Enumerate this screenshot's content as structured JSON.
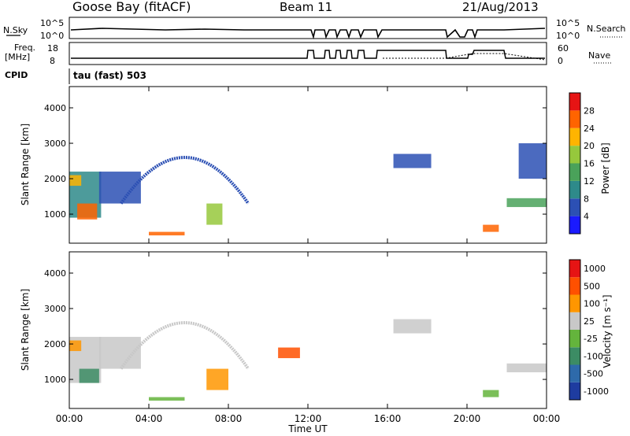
{
  "header": {
    "station": "Goose Bay (fitACF)",
    "beam": "Beam 11",
    "date": "21/Aug/2013"
  },
  "top_panels": {
    "nsky_label": "N.Sky",
    "nsky_ticks": [
      "10^5",
      "10^0"
    ],
    "nsearch_label": "N.Search",
    "nsearch_ticks": [
      "10^5",
      "10^0"
    ],
    "freq_label": [
      "Freq.",
      "[MHz]"
    ],
    "freq_ticks": [
      "18",
      "8"
    ],
    "nave_label": "Nave",
    "nave_ticks": [
      "60",
      "0"
    ],
    "cpid_label": "CPID",
    "cpid_text": "tau (fast) 503"
  },
  "chart_data": [
    {
      "type": "heatmap",
      "title": "",
      "ylabel": "Slant Range [km]",
      "xlabel": "",
      "yticks": [
        "1000",
        "2000",
        "3000",
        "4000"
      ],
      "ylim": [
        180,
        4600
      ],
      "xlim": [
        "00:00",
        "24:00"
      ],
      "colorbar": {
        "label": "Power [dB]",
        "ticks": [
          "4",
          "8",
          "12",
          "16",
          "20",
          "24",
          "28"
        ],
        "colors": [
          "#1a1aff",
          "#2c50b4",
          "#2e8a8a",
          "#4aa25a",
          "#96c83c",
          "#ffb400",
          "#ff6400",
          "#e61414"
        ]
      },
      "regions": [
        {
          "t0": 0.0,
          "t1": 1.6,
          "r0": 900,
          "r1": 2200,
          "color": "#2e8a8a"
        },
        {
          "t0": 0.4,
          "t1": 1.4,
          "r0": 850,
          "r1": 1300,
          "color": "#ff6400"
        },
        {
          "t0": 0.0,
          "t1": 0.6,
          "r0": 1800,
          "r1": 2100,
          "color": "#ffb400"
        },
        {
          "t0": 1.5,
          "t1": 3.6,
          "r0": 1300,
          "r1": 2200,
          "color": "#2c50b4"
        },
        {
          "t0": 4.0,
          "t1": 5.8,
          "r0": 400,
          "r1": 500,
          "color": "#ff6400"
        },
        {
          "t0": 6.9,
          "t1": 7.7,
          "r0": 700,
          "r1": 1300,
          "color": "#96c83c"
        },
        {
          "t0": 16.3,
          "t1": 18.2,
          "r0": 2300,
          "r1": 2700,
          "color": "#2c50b4"
        },
        {
          "t0": 20.8,
          "t1": 21.6,
          "r0": 500,
          "r1": 700,
          "color": "#ff6400"
        },
        {
          "t0": 22.0,
          "t1": 24.0,
          "r0": 1200,
          "r1": 1450,
          "color": "#4aa25a"
        },
        {
          "t0": 22.6,
          "t1": 24.0,
          "r0": 2000,
          "r1": 3000,
          "color": "#2c50b4"
        }
      ],
      "arc": {
        "t_start": 2.6,
        "t_peak": 5.8,
        "t_end": 9.0,
        "r_base": 1300,
        "r_peak": 2600,
        "color": "#2c50b4"
      }
    },
    {
      "type": "heatmap",
      "title": "",
      "ylabel": "Slant Range [km]",
      "xlabel": "Time UT",
      "xticks": [
        "00:00",
        "04:00",
        "08:00",
        "12:00",
        "16:00",
        "20:00",
        "00:00"
      ],
      "yticks": [
        "1000",
        "2000",
        "3000",
        "4000"
      ],
      "ylim": [
        180,
        4600
      ],
      "colorbar": {
        "label": "Velocity [m s⁻¹]",
        "ticks": [
          "1000",
          "500",
          "100",
          "25",
          "-25",
          "-100",
          "-500",
          "-1000"
        ],
        "colors": [
          "#1e3ca0",
          "#2e6aaa",
          "#3c8c64",
          "#64b43c",
          "#c8c8c8",
          "#ff9600",
          "#ff5000",
          "#e61414"
        ]
      },
      "regions": [
        {
          "t0": 0.0,
          "t1": 1.6,
          "r0": 900,
          "r1": 2200,
          "color": "#c8c8c8"
        },
        {
          "t0": 0.0,
          "t1": 0.6,
          "r0": 1800,
          "r1": 2100,
          "color": "#ff9600"
        },
        {
          "t0": 0.5,
          "t1": 1.5,
          "r0": 900,
          "r1": 1300,
          "color": "#3c8c64"
        },
        {
          "t0": 1.5,
          "t1": 3.6,
          "r0": 1300,
          "r1": 2200,
          "color": "#c8c8c8"
        },
        {
          "t0": 4.0,
          "t1": 5.8,
          "r0": 400,
          "r1": 500,
          "color": "#64b43c"
        },
        {
          "t0": 6.9,
          "t1": 8.0,
          "r0": 700,
          "r1": 1300,
          "color": "#ff9600"
        },
        {
          "t0": 10.5,
          "t1": 11.6,
          "r0": 1600,
          "r1": 1900,
          "color": "#ff5000"
        },
        {
          "t0": 16.3,
          "t1": 18.2,
          "r0": 2300,
          "r1": 2700,
          "color": "#c8c8c8"
        },
        {
          "t0": 20.8,
          "t1": 21.6,
          "r0": 500,
          "r1": 700,
          "color": "#64b43c"
        },
        {
          "t0": 22.0,
          "t1": 24.0,
          "r0": 1200,
          "r1": 1450,
          "color": "#c8c8c8"
        }
      ],
      "arc": {
        "t_start": 2.6,
        "t_peak": 5.8,
        "t_end": 9.0,
        "r_base": 1300,
        "r_peak": 2600,
        "color": "#c8c8c8"
      }
    }
  ]
}
